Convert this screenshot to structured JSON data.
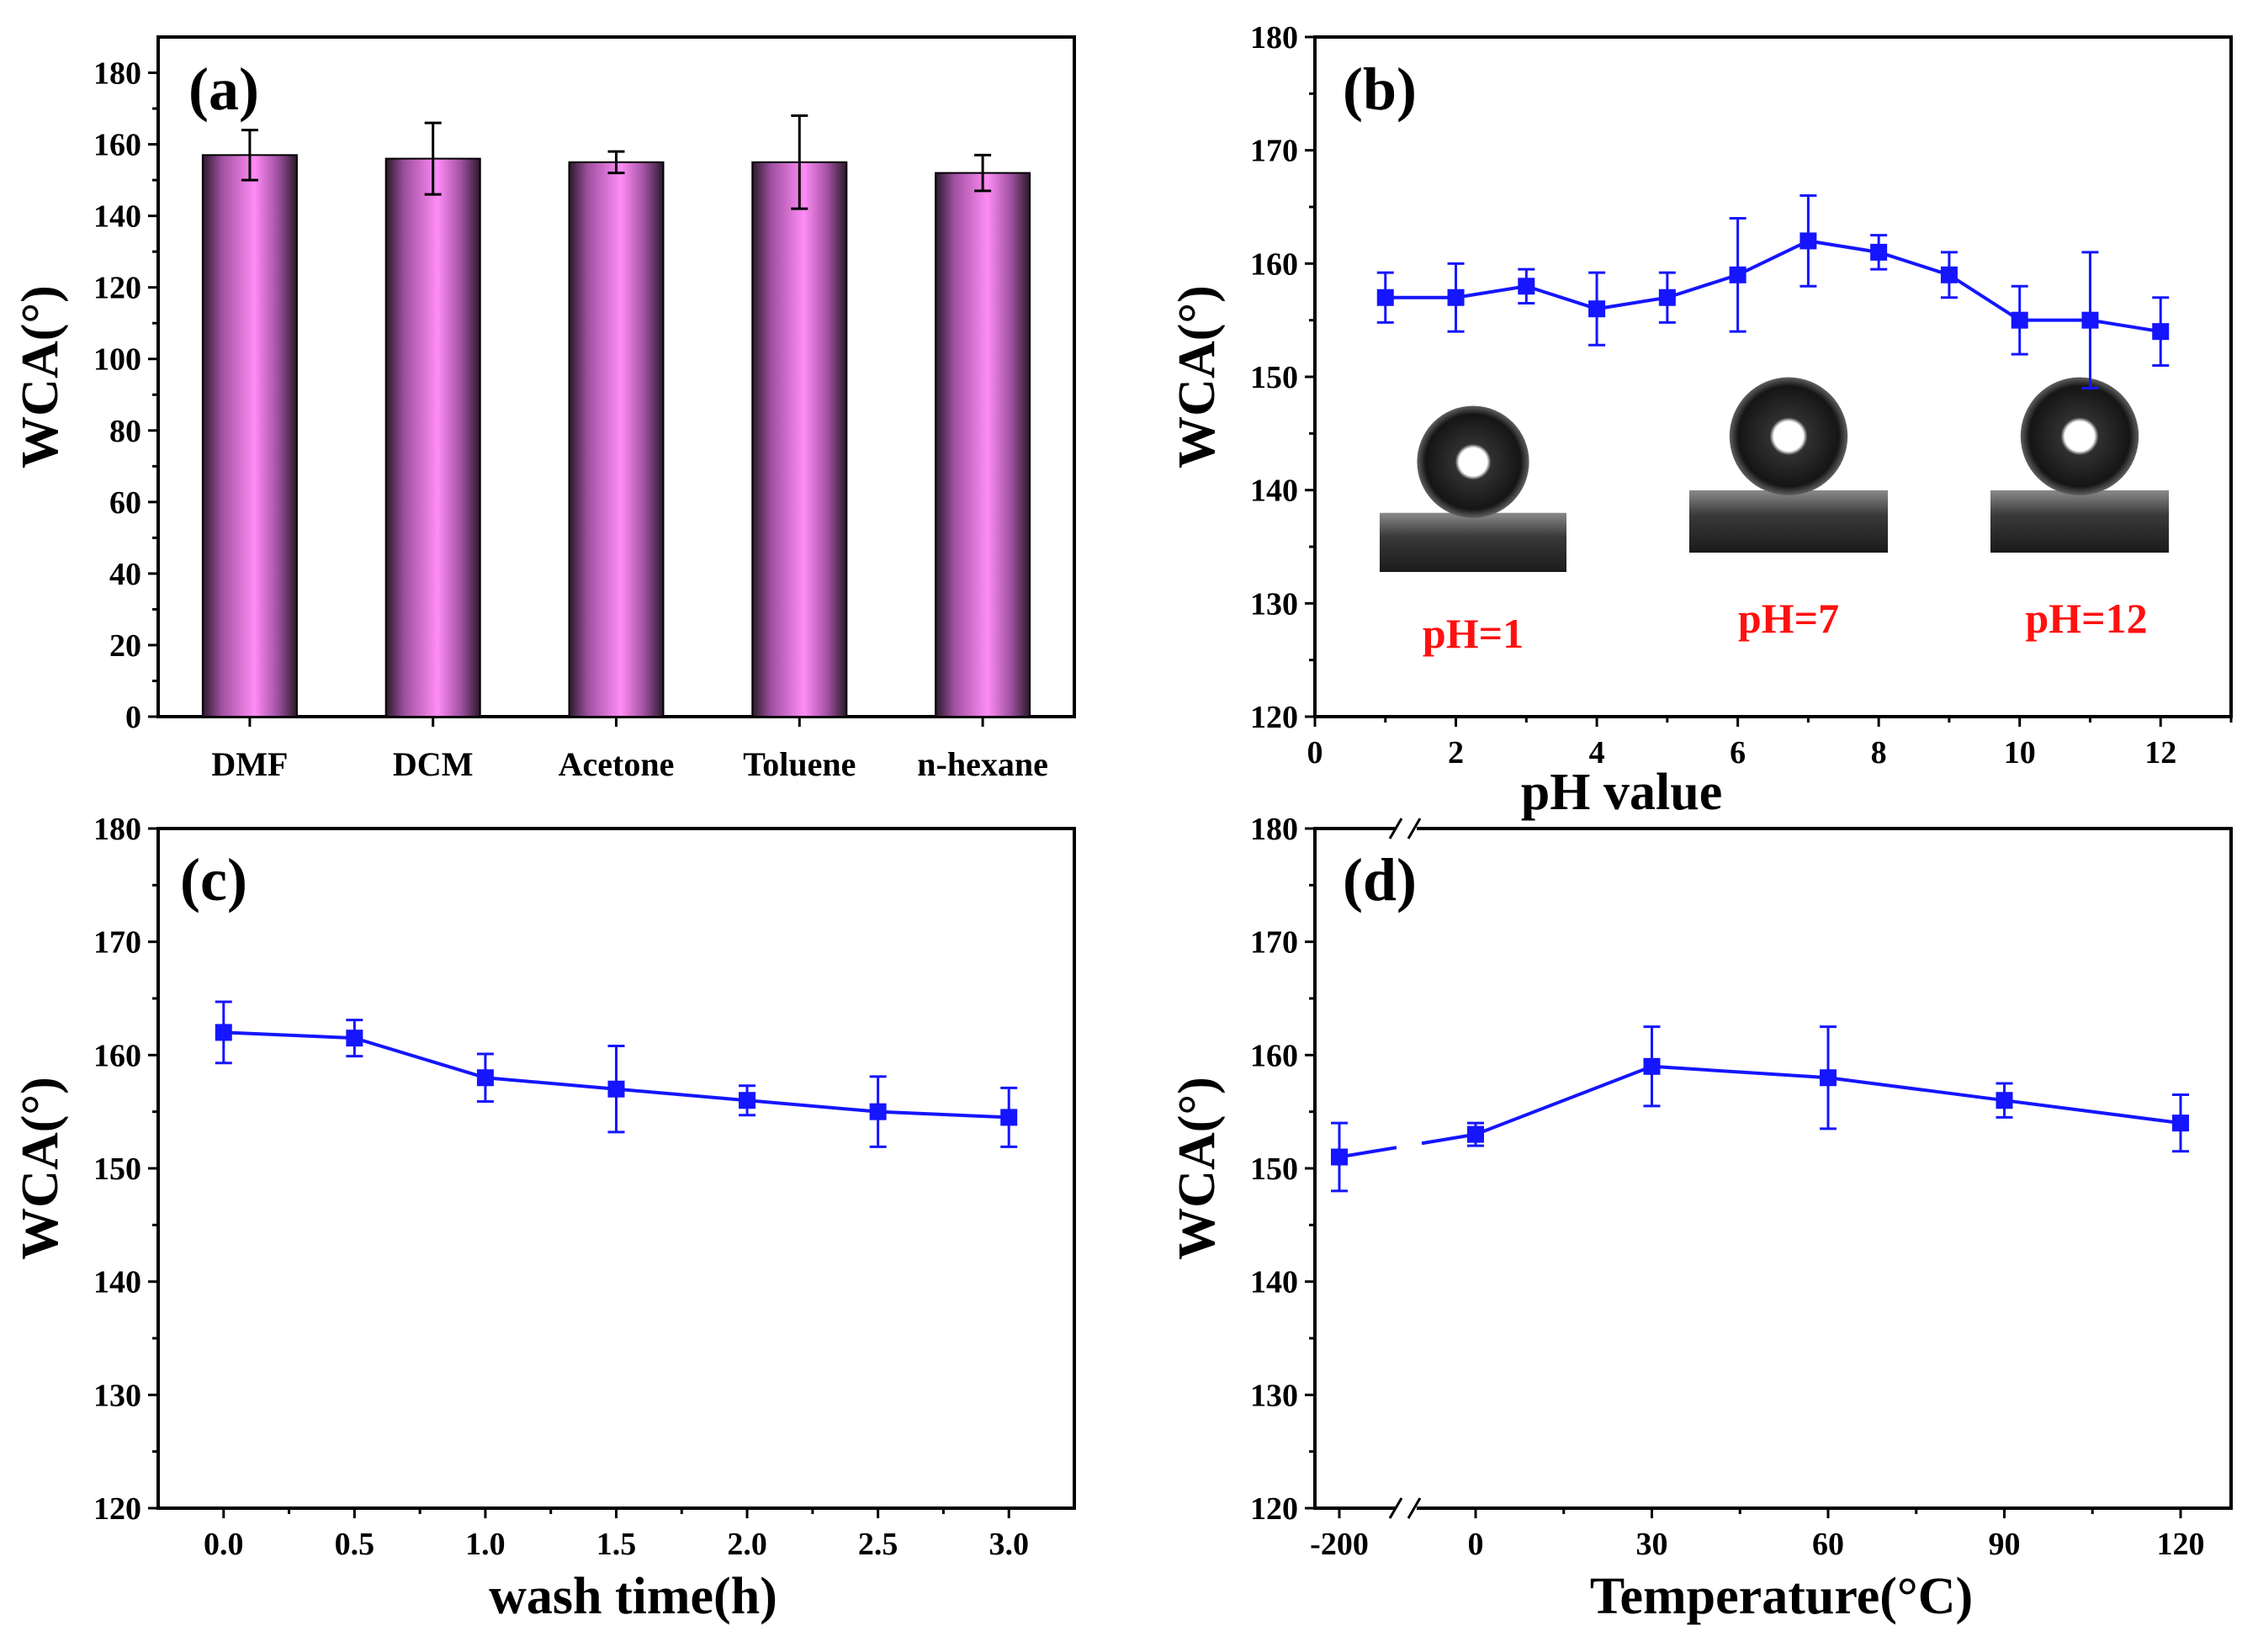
{
  "colors": {
    "line": "#1515ff",
    "bar_light": "#ff8cf6",
    "bar_dark": "#2a1a2a",
    "ph_label": "#ff1010",
    "axis": "#000000"
  },
  "chart_data": [
    {
      "panel": "(a)",
      "type": "bar",
      "xlabel": "",
      "ylabel": "WCA(°)",
      "ylim": [
        0,
        190
      ],
      "yticks": [
        0,
        20,
        40,
        60,
        80,
        100,
        120,
        140,
        160,
        180
      ],
      "categories": [
        "DMF",
        "DCM",
        "Acetone",
        "Toluene",
        "n-hexane"
      ],
      "values": [
        157,
        156,
        155,
        155,
        152
      ],
      "errors": [
        7,
        10,
        3,
        13,
        5
      ]
    },
    {
      "panel": "(b)",
      "type": "line",
      "xlabel": "pH value",
      "ylabel": "WCA(°)",
      "xlim": [
        0,
        13
      ],
      "ylim": [
        120,
        180
      ],
      "xticks": [
        0,
        2,
        4,
        6,
        8,
        10,
        12
      ],
      "yticks": [
        120,
        130,
        140,
        150,
        160,
        170,
        180
      ],
      "x": [
        1,
        2,
        3,
        4,
        5,
        6,
        7,
        8,
        9,
        10,
        11,
        12
      ],
      "y": [
        157,
        157,
        158,
        156,
        157,
        159,
        162,
        161,
        159,
        155,
        155,
        154
      ],
      "errors": [
        2.2,
        3,
        1.5,
        3.2,
        2.2,
        5,
        4,
        1.5,
        2,
        3,
        6,
        3
      ],
      "insets": [
        {
          "label": "pH=1",
          "image": "water-droplet-photo"
        },
        {
          "label": "pH=7",
          "image": "water-droplet-photo"
        },
        {
          "label": "pH=12",
          "image": "water-droplet-photo"
        }
      ]
    },
    {
      "panel": "(c)",
      "type": "line",
      "xlabel": "wash time(h)",
      "ylabel": "WCA(°)",
      "xlim": [
        -0.25,
        3.25
      ],
      "ylim": [
        120,
        180
      ],
      "xticks": [
        "0.0",
        "0.5",
        "1.0",
        "1.5",
        "2.0",
        "2.5",
        "3.0"
      ],
      "yticks": [
        120,
        130,
        140,
        150,
        160,
        170,
        180
      ],
      "x": [
        0,
        0.5,
        1,
        1.5,
        2,
        2.5,
        3
      ],
      "y": [
        162,
        161.5,
        158,
        157,
        156,
        155,
        154.5
      ],
      "errors": [
        2.7,
        1.6,
        2.1,
        3.8,
        1.3,
        3.1,
        2.6
      ]
    },
    {
      "panel": "(d)",
      "type": "line",
      "xlabel": "Temperature(°C)",
      "ylabel": "WCA(°)",
      "axis_break": "between -200 and 0",
      "ylim": [
        120,
        180
      ],
      "xticks": [
        "-200",
        "0",
        "30",
        "60",
        "90",
        "120"
      ],
      "yticks": [
        120,
        130,
        140,
        150,
        160,
        170,
        180
      ],
      "x": [
        -200,
        0,
        30,
        60,
        90,
        120
      ],
      "y": [
        151,
        153,
        159,
        158,
        156,
        154
      ],
      "errors": [
        3,
        1,
        3.5,
        4.5,
        1.5,
        2.5
      ]
    }
  ]
}
